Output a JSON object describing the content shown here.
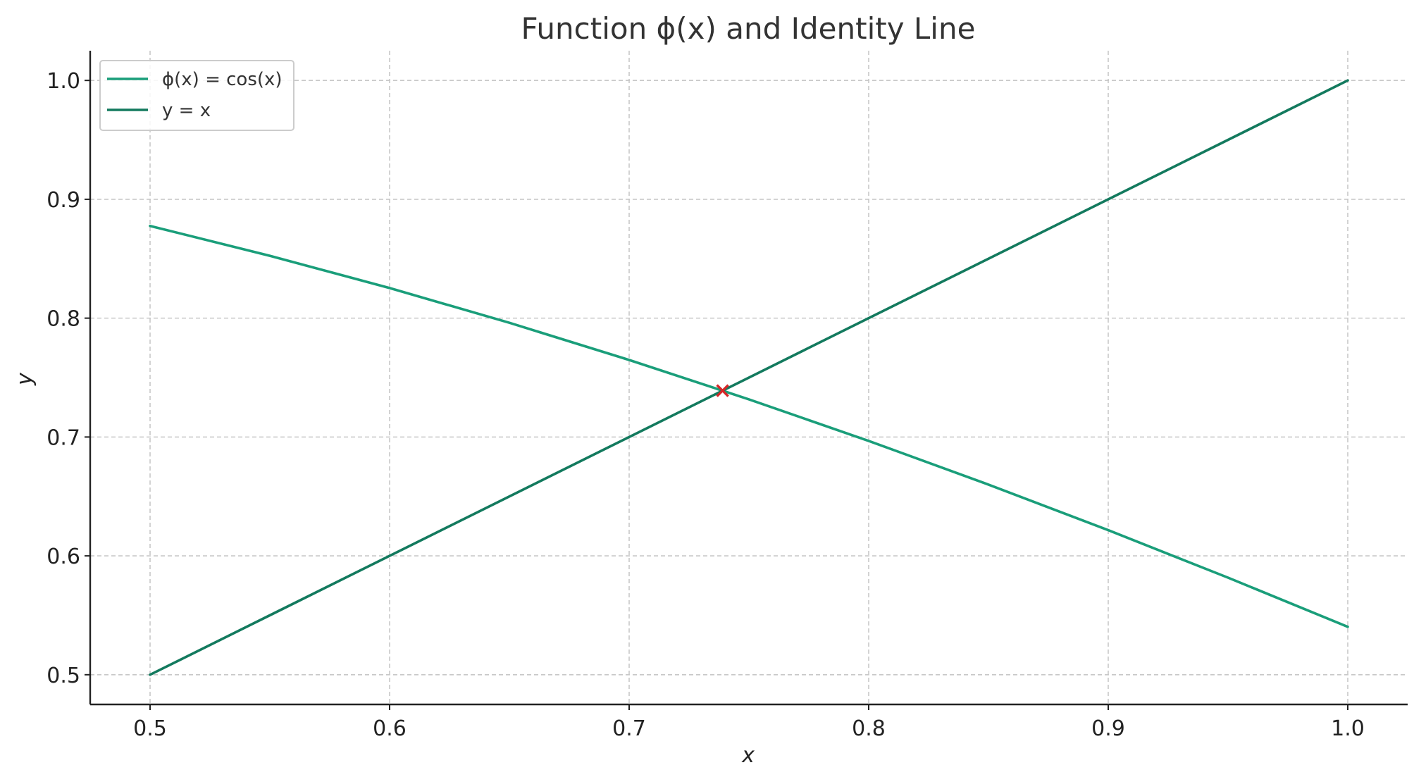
{
  "chart_data": {
    "type": "line",
    "title": "Function ϕ(x) and Identity Line",
    "xlabel": "x",
    "ylabel": "y",
    "xlim": [
      0.475,
      1.025
    ],
    "ylim": [
      0.475,
      1.025
    ],
    "xticks": [
      0.5,
      0.6,
      0.7,
      0.8,
      0.9,
      1.0
    ],
    "xtick_labels": [
      "0.5",
      "0.6",
      "0.7",
      "0.8",
      "0.9",
      "1.0"
    ],
    "yticks": [
      0.5,
      0.6,
      0.7,
      0.8,
      0.9,
      1.0
    ],
    "ytick_labels": [
      "0.5",
      "0.6",
      "0.7",
      "0.8",
      "0.9",
      "1.0"
    ],
    "grid": true,
    "legend_position": "top-left",
    "series": [
      {
        "name": "ϕ(x) = cos(x)",
        "color": "#1a9e7a",
        "x": [
          0.5,
          0.55,
          0.6,
          0.65,
          0.7,
          0.75,
          0.8,
          0.85,
          0.9,
          0.95,
          1.0
        ],
        "y": [
          0.8776,
          0.8525,
          0.8253,
          0.7961,
          0.7648,
          0.7317,
          0.6967,
          0.66,
          0.6216,
          0.5817,
          0.5403
        ]
      },
      {
        "name": "y = x",
        "color": "#137a5e",
        "x": [
          0.5,
          1.0
        ],
        "y": [
          0.5,
          1.0
        ]
      }
    ],
    "marker": {
      "symbol": "x",
      "x": 0.739,
      "y": 0.739,
      "color": "#d62728"
    }
  }
}
